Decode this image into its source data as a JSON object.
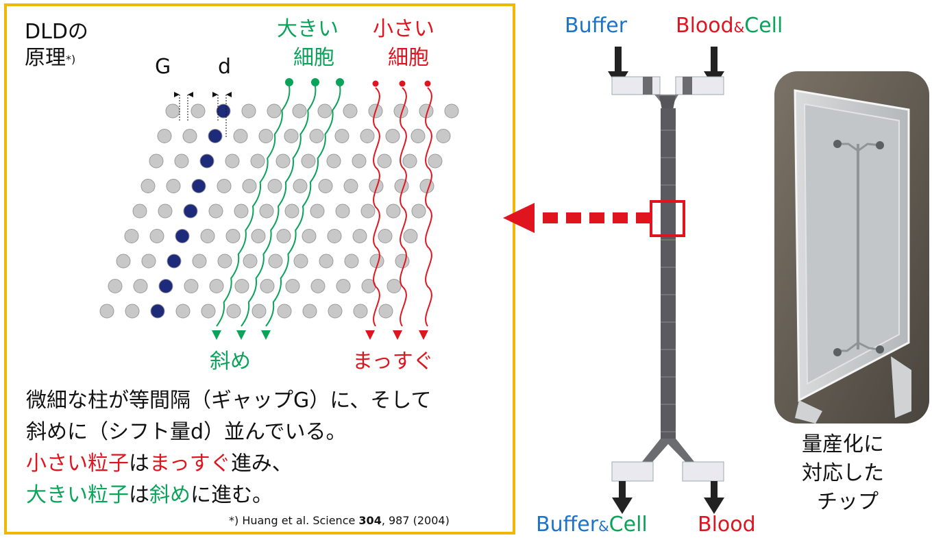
{
  "principle": {
    "title_line1": "DLDの",
    "title_line2": "原理",
    "title_sup": "*)",
    "gap_label": "G",
    "shift_label": "d",
    "large_cells_line1": "大きい",
    "large_cells_line2": "細胞",
    "small_cells_line1": "小さい",
    "small_cells_line2": "細胞",
    "diagonal_label": "斜め",
    "straight_label": "まっすぐ",
    "desc_line1": "微細な柱が等間隔（ギャップG）に、そして",
    "desc_line2": "斜めに（シフト量d）並んでいる。",
    "desc_line3_red1": "小さい粒子",
    "desc_line3_black1": "は",
    "desc_line3_red2": "まっすぐ",
    "desc_line3_black2": "進み、",
    "desc_line4_green1": "大きい粒子",
    "desc_line4_black1": "は",
    "desc_line4_green2": "斜め",
    "desc_line4_black2": "に進む。",
    "citation_pre": "*) Huang et al.  Science ",
    "citation_bold": "304",
    "citation_post": ", 987 (2004)"
  },
  "chip": {
    "inlet_buffer": "Buffer",
    "inlet_blood": "Blood",
    "inlet_amp": "&",
    "inlet_cell": "Cell",
    "outlet_buffer": "Buffer",
    "outlet_amp": "&",
    "outlet_cell": "Cell",
    "outlet_blood": "Blood"
  },
  "product": {
    "caption_line1": "量産化に",
    "caption_line2": "対応した",
    "caption_line3": "チップ"
  },
  "colors": {
    "frame": "#f2b705",
    "green": "#0aa35a",
    "red": "#e0141e",
    "blue": "#1b74c9",
    "pillar": "#c8c8c8",
    "shifted_pillar": "#1e2a7a"
  }
}
